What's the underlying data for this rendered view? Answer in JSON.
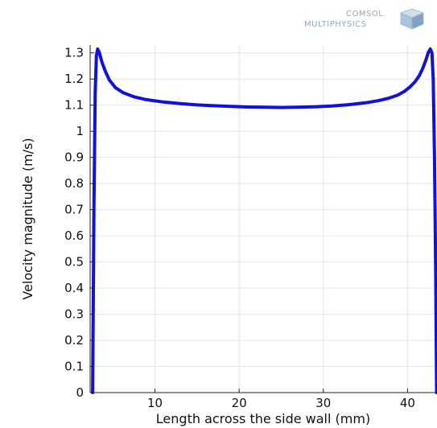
{
  "logo": {
    "line1": "COMSOL",
    "line2": "MULTIPHYSICS"
  },
  "colors": {
    "series": "#1010e0",
    "grid": "#e6e6e6",
    "axis": "#222222",
    "logo": "#8fa9c2"
  },
  "chart_data": {
    "type": "line",
    "title": "",
    "xlabel": "Length across the side wall (mm)",
    "ylabel": "Velocity magnitude (m/s)",
    "xlim": [
      2.3,
      43.5
    ],
    "ylim": [
      0,
      1.33
    ],
    "grid": true,
    "xticks": [
      10,
      20,
      30,
      40
    ],
    "yticks": [
      0,
      0.1,
      0.2,
      0.3,
      0.4,
      0.5,
      0.6,
      0.7,
      0.8,
      0.9,
      1,
      1.1,
      1.2,
      1.3
    ],
    "series": [
      {
        "x": [
          2.6,
          2.75,
          2.9,
          3.05,
          3.2,
          3.4,
          3.7,
          4.1,
          4.6,
          5.3,
          6.2,
          7.5,
          9,
          11,
          13,
          15,
          17,
          19,
          21,
          23,
          25,
          27,
          29,
          31,
          33,
          35,
          36.5,
          37.8,
          38.8,
          39.6,
          40.3,
          40.9,
          41.4,
          41.8,
          42.15,
          42.45,
          42.7,
          42.9,
          43.05,
          43.2,
          43.35,
          43.45
        ],
        "y": [
          0.0,
          0.7,
          1.15,
          1.29,
          1.315,
          1.3,
          1.265,
          1.23,
          1.195,
          1.167,
          1.148,
          1.132,
          1.121,
          1.112,
          1.106,
          1.101,
          1.098,
          1.095,
          1.093,
          1.092,
          1.091,
          1.092,
          1.094,
          1.097,
          1.102,
          1.109,
          1.117,
          1.127,
          1.138,
          1.152,
          1.17,
          1.19,
          1.213,
          1.24,
          1.27,
          1.3,
          1.315,
          1.3,
          1.2,
          0.9,
          0.45,
          0.0
        ]
      }
    ]
  }
}
